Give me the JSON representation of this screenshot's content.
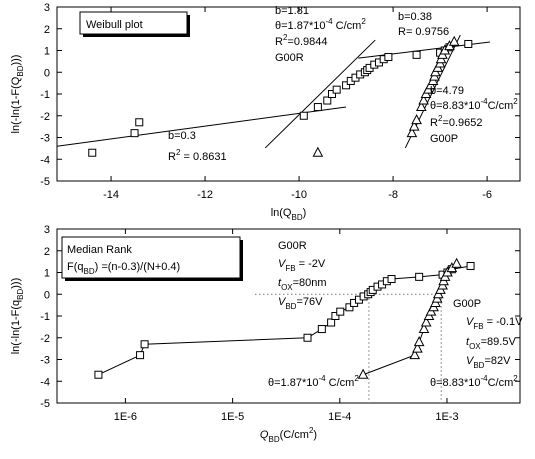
{
  "chart_data": [
    {
      "type": "scatter",
      "title": "Weibull plot",
      "xlabel": [
        "ln(Q",
        "BD",
        ")"
      ],
      "ylabel": [
        "ln(-ln(1-F(Q",
        "BD",
        ")))"
      ],
      "xlim": [
        -15.15,
        -5.3
      ],
      "xticks": [
        -14,
        -12,
        -10,
        -8,
        -6
      ],
      "ylim": [
        -5,
        3
      ],
      "yticks": [
        -5,
        -4,
        -3,
        -2,
        -1,
        0,
        1,
        2,
        3
      ],
      "series": [
        {
          "marker": "square",
          "color": "#000000",
          "x": [
            -14.4,
            -13.5,
            -13.4,
            -9.9,
            -9.6,
            -9.4,
            -9.3,
            -9.2,
            -9.0,
            -8.9,
            -8.8,
            -8.7,
            -8.6,
            -8.55,
            -8.5,
            -8.4,
            -8.3,
            -8.2,
            -8.1,
            -7.5,
            -7.0,
            -6.9,
            -6.8,
            -6.4
          ],
          "values": [
            -3.7,
            -2.8,
            -2.3,
            -2.0,
            -1.6,
            -1.3,
            -1.0,
            -0.8,
            -0.6,
            -0.4,
            -0.25,
            -0.1,
            0.0,
            0.1,
            0.2,
            0.35,
            0.45,
            0.6,
            0.7,
            0.8,
            0.9,
            1.0,
            1.15,
            1.3
          ]
        },
        {
          "marker": "triangle",
          "color": "#000000",
          "x": [
            -9.6,
            -7.6,
            -7.55,
            -7.5,
            -7.4,
            -7.35,
            -7.3,
            -7.25,
            -7.2,
            -7.15,
            -7.12,
            -7.1,
            -7.05,
            -7.0,
            -6.98,
            -6.95,
            -6.9,
            -6.8,
            -6.7
          ],
          "values": [
            -3.7,
            -2.8,
            -2.5,
            -2.2,
            -1.6,
            -1.3,
            -1.0,
            -0.8,
            -0.6,
            -0.4,
            -0.2,
            0.0,
            0.2,
            0.4,
            0.6,
            0.8,
            1.0,
            1.2,
            1.4
          ]
        }
      ],
      "fits": [
        {
          "x": [
            -15.15,
            -9.0
          ],
          "values": [
            -3.4,
            -1.6
          ]
        },
        {
          "x": [
            -10.72,
            -8.38
          ],
          "values": [
            -3.48,
            1.48
          ]
        },
        {
          "x": [
            -8.74,
            -5.94
          ],
          "values": [
            0.65,
            1.39
          ]
        },
        {
          "x": [
            -7.74,
            -6.57
          ],
          "values": [
            -3.48,
            1.71
          ]
        }
      ],
      "annotations": [
        [
          "b=1.81"
        ],
        [
          "θ=1.87*10",
          "-4",
          " C/cm",
          "2"
        ],
        [
          "R",
          "2",
          "=0.9844"
        ],
        [
          "G00R"
        ],
        [
          "b=0.38"
        ],
        [
          "R= 0.9756"
        ],
        [
          "b=4.79"
        ],
        [
          "θ=8.83*10",
          "-4",
          "C/cm",
          "2"
        ],
        [
          "R",
          "2",
          "=0.9652"
        ],
        [
          "G00P"
        ],
        [
          "b=0.3"
        ],
        [
          "R",
          "2",
          " = 0.8631"
        ]
      ]
    },
    {
      "type": "scatter",
      "title": "Median Rank",
      "xscale": "log",
      "connect": true,
      "xlabel": [
        "Q",
        "BD",
        "(C/cm",
        "2",
        ")"
      ],
      "ylabel": [
        "ln(-ln(1-F(q",
        "BD",
        ")))"
      ],
      "xlim": [
        2.3e-07,
        0.0048
      ],
      "xticks": [
        {
          "value": 1e-06,
          "label": "1E-6"
        },
        {
          "value": 1e-05,
          "label": "1E-5"
        },
        {
          "value": 0.0001,
          "label": "1E-4"
        },
        {
          "value": 0.001,
          "label": "1E-3"
        }
      ],
      "ylim": [
        -5,
        3
      ],
      "yticks": [
        -5,
        -4,
        -3,
        -2,
        -1,
        0,
        1,
        2,
        3
      ],
      "series": [
        {
          "marker": "square",
          "color": "#000000",
          "x": [
            5.6e-07,
            1.37e-06,
            1.51e-06,
            5e-05,
            6.8e-05,
            8.3e-05,
            9.1e-05,
            0.000101,
            0.000123,
            0.000136,
            0.000151,
            0.000167,
            0.000184,
            0.000194,
            0.000203,
            0.000225,
            0.000248,
            0.000275,
            0.000304,
            0.00055,
            0.00091,
            0.00101,
            0.00111,
            0.00166
          ],
          "values": [
            -3.7,
            -2.8,
            -2.3,
            -2.0,
            -1.6,
            -1.3,
            -1.0,
            -0.8,
            -0.6,
            -0.4,
            -0.25,
            -0.1,
            0.0,
            0.1,
            0.2,
            0.35,
            0.45,
            0.6,
            0.7,
            0.8,
            0.9,
            1.0,
            1.15,
            1.3
          ]
        },
        {
          "marker": "triangle",
          "color": "#000000",
          "x": [
            0.000165,
            0.0005,
            0.00053,
            0.00055,
            0.00061,
            0.00064,
            0.00068,
            0.00071,
            0.00075,
            0.00078,
            0.00081,
            0.00083,
            0.00087,
            0.00091,
            0.00093,
            0.00096,
            0.00101,
            0.00111,
            0.00123
          ],
          "values": [
            -3.7,
            -2.8,
            -2.5,
            -2.2,
            -1.6,
            -1.3,
            -1.0,
            -0.8,
            -0.6,
            -0.4,
            -0.2,
            0.0,
            0.2,
            0.4,
            0.6,
            0.8,
            1.0,
            1.2,
            1.4
          ]
        }
      ],
      "ref_x": [
        0.000187,
        0.000883
      ],
      "ref_y": 0,
      "annotations": [
        [
          "F(q",
          "BD",
          ") =(n-0.3)/(N+0.4)"
        ],
        [
          "G00R"
        ],
        [
          "V",
          "FB",
          " = -2V"
        ],
        [
          "t",
          "OX",
          "=80nm"
        ],
        [
          "V",
          "BD",
          "=76V"
        ],
        [
          "G00P"
        ],
        [
          "V",
          "FB",
          " = -0.1V"
        ],
        [
          "t",
          "OX",
          "=89.5V"
        ],
        [
          "V",
          "BD",
          "=82V"
        ],
        [
          "θ=1.87*10",
          "-4",
          " C/cm",
          "2"
        ],
        [
          "θ=8.83*10",
          "-4",
          "C/cm",
          "2"
        ]
      ]
    }
  ]
}
